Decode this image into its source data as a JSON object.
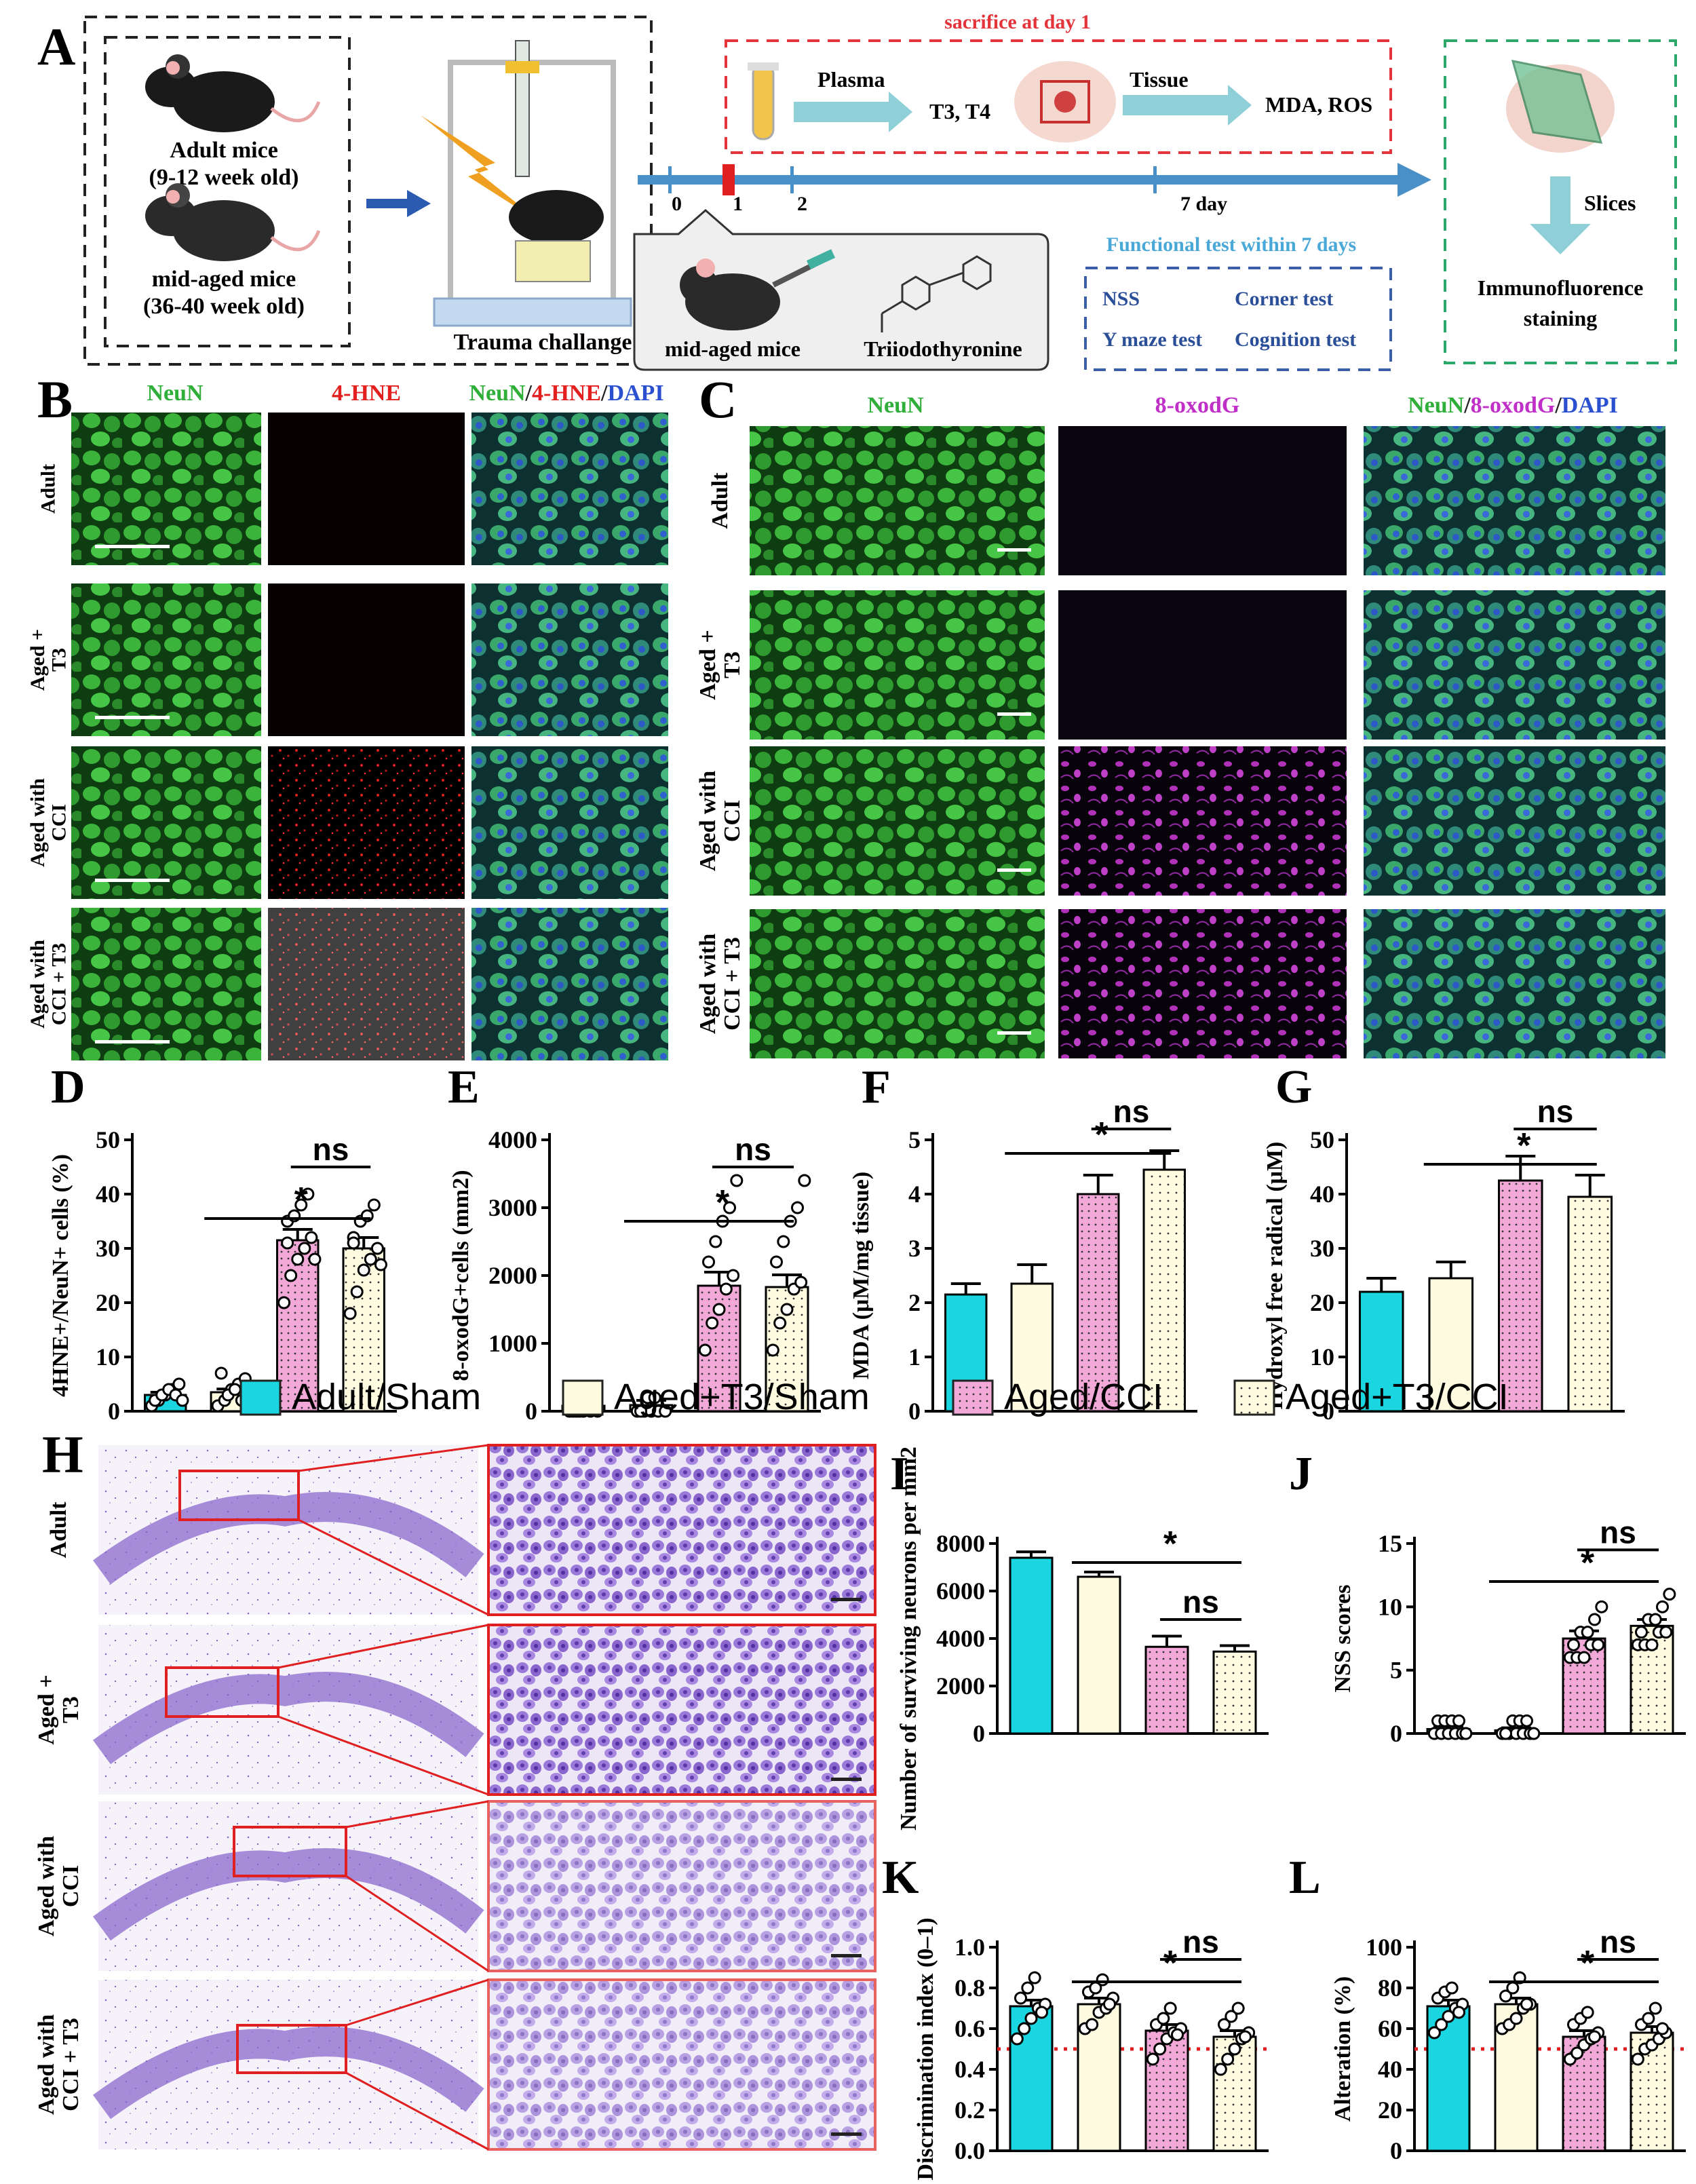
{
  "panel_labels": {
    "A": "A",
    "B": "B",
    "C": "C",
    "D": "D",
    "E": "E",
    "F": "F",
    "G": "G",
    "H": "H",
    "I": "I",
    "J": "J",
    "K": "K",
    "L": "L"
  },
  "schematic": {
    "adult_mice": "Adult mice",
    "adult_age": "(9-12 week old)",
    "midaged_mice": "mid-aged mice",
    "midaged_age": "(36-40 week old)",
    "trauma": "Trauma challange",
    "sacrifice": "sacrifice at day 1",
    "plasma": "Plasma",
    "t3t4": "T3, T4",
    "tissue": "Tissue",
    "mda_ros": "MDA, ROS",
    "tick_0": "0",
    "tick_1": "1",
    "tick_2": "2",
    "tick_7": "7 day",
    "inject_mice": "mid-aged mice",
    "drug": "Triiodothyronine",
    "functional_title": "Functional test within 7 days",
    "test_nss": "NSS",
    "test_corner": "Corner test",
    "test_ymaze": "Y maze test",
    "test_cognition": "Cognition test",
    "slices": "Slices",
    "immuno_1": "Immunofluorence",
    "immuno_2": "staining",
    "colors": {
      "red_box": "#e3343b",
      "green_box": "#2ea86a",
      "blue_arrow": "#4a90c8",
      "teal_arrow": "#8ecfd8",
      "blue_box": "#3a5fa8"
    }
  },
  "micrograph_B": {
    "col_neun": "NeuN",
    "col_hne": "4-HNE",
    "merge_neun": "NeuN",
    "merge_slash1": "/",
    "merge_hne": "4-HNE",
    "merge_slash2": "/",
    "merge_dapi": "DAPI",
    "rows": [
      "Adult",
      "Aged + T3",
      "Aged with CCI",
      "Aged with CCI + T3"
    ]
  },
  "micrograph_C": {
    "col_neun": "NeuN",
    "col_oxo": "8-oxodG",
    "merge_neun": "NeuN",
    "merge_slash1": "/",
    "merge_oxo": "8-oxodG",
    "merge_slash2": "/",
    "merge_dapi": "DAPI",
    "rows": [
      "Adult",
      "Aged + T3",
      "Aged with CCI",
      "Aged with CCI + T3"
    ]
  },
  "micrograph_H": {
    "rows": [
      "Adult",
      "Aged + T3",
      "Aged with CCI",
      "Aged with CCI + T3"
    ]
  },
  "legend": {
    "entries": [
      "Adult/Sham",
      "Aged+T3/Sham",
      "Aged/CCI",
      "Aged+T3/CCI"
    ],
    "colors": [
      "#19d6e0",
      "#fffbe0",
      "#f2a9d8",
      "#fffbe0"
    ]
  },
  "chart_data": [
    {
      "panel": "D",
      "type": "bar",
      "ylabel": "4HNE+/NeuN+ cells (%)",
      "ylim": [
        0,
        50
      ],
      "yticks": [
        0,
        10,
        20,
        30,
        40,
        50
      ],
      "values": [
        3,
        3.5,
        31.5,
        30
      ],
      "errors": [
        0.5,
        0.6,
        2,
        2
      ],
      "points": [
        [
          1,
          2,
          3,
          4,
          5,
          2,
          3,
          4,
          3,
          2
        ],
        [
          1,
          2,
          4,
          5,
          6,
          7,
          3,
          4,
          2,
          3
        ],
        [
          20,
          25,
          28,
          30,
          32,
          35,
          36,
          38,
          40,
          28,
          31
        ],
        [
          18,
          22,
          26,
          28,
          30,
          32,
          35,
          36,
          38,
          27,
          31
        ]
      ],
      "sig": [
        {
          "from": 1,
          "to": 3,
          "label": "*",
          "y": 35.5
        },
        {
          "from": 2,
          "to": 3,
          "label": "ns",
          "y": 45
        }
      ]
    },
    {
      "panel": "E",
      "type": "bar",
      "ylabel": "8-oxodG+cells (mm2)",
      "ylim": [
        0,
        4000
      ],
      "yticks": [
        0,
        1000,
        2000,
        3000,
        4000
      ],
      "values": [
        80,
        90,
        1850,
        1830
      ],
      "errors": [
        60,
        70,
        200,
        180
      ],
      "points": [
        [
          0,
          0,
          0,
          0,
          0,
          0,
          0,
          200,
          200
        ],
        [
          0,
          0,
          0,
          0,
          0,
          0,
          200,
          200
        ],
        [
          900,
          1300,
          1500,
          1800,
          2000,
          2200,
          2500,
          2800,
          3000,
          3400
        ],
        [
          900,
          1300,
          1500,
          1800,
          1900,
          2200,
          2500,
          2800,
          3000,
          3400
        ]
      ],
      "sig": [
        {
          "from": 1,
          "to": 3,
          "label": "*",
          "y": 2800
        },
        {
          "from": 2,
          "to": 3,
          "label": "ns",
          "y": 3600
        }
      ]
    },
    {
      "panel": "F",
      "type": "bar",
      "ylabel": "MDA (μM/mg tissue)",
      "ylim": [
        0,
        5
      ],
      "yticks": [
        0,
        1,
        2,
        3,
        4,
        5
      ],
      "values": [
        2.15,
        2.35,
        4.0,
        4.45
      ],
      "errors": [
        0.2,
        0.35,
        0.35,
        0.35
      ],
      "points": [
        [],
        [],
        [],
        []
      ],
      "sig": [
        {
          "from": 1,
          "to": 3,
          "label": "*",
          "y": 4.75
        },
        {
          "from": 2,
          "to": 3,
          "label": "ns",
          "y": 5.2
        }
      ]
    },
    {
      "panel": "G",
      "type": "bar",
      "ylabel": "Hydroxyl free radical (μM)",
      "ylim": [
        0,
        50
      ],
      "yticks": [
        0,
        10,
        20,
        30,
        40,
        50
      ],
      "values": [
        22,
        24.5,
        42.5,
        39.5
      ],
      "errors": [
        2.5,
        3,
        4.5,
        4
      ],
      "points": [
        [],
        [],
        [],
        []
      ],
      "sig": [
        {
          "from": 1,
          "to": 3,
          "label": "*",
          "y": 45.5
        },
        {
          "from": 2,
          "to": 3,
          "label": "ns",
          "y": 52
        }
      ]
    },
    {
      "panel": "I",
      "type": "bar",
      "ylabel": "Number of surviving neurons per mm2",
      "ylim": [
        0,
        8000
      ],
      "yticks": [
        0,
        2000,
        4000,
        6000,
        8000
      ],
      "values": [
        7400,
        6600,
        3650,
        3450
      ],
      "errors": [
        250,
        200,
        450,
        250
      ],
      "points": [
        [],
        [],
        [],
        []
      ],
      "sig": [
        {
          "from": 1,
          "to": 3,
          "label": "*",
          "y": 7200
        },
        {
          "from": 2,
          "to": 3,
          "label": "ns",
          "y": 4800
        }
      ]
    },
    {
      "panel": "J",
      "type": "bar",
      "ylabel": "NSS scores",
      "ylim": [
        0,
        15
      ],
      "yticks": [
        0,
        5,
        10,
        15
      ],
      "values": [
        0.35,
        0.25,
        7.5,
        8.5
      ],
      "errors": [
        0.2,
        0.2,
        0.6,
        0.5
      ],
      "points": [
        [
          0,
          0,
          0,
          0,
          0,
          1,
          1,
          1,
          1,
          0
        ],
        [
          0,
          0,
          0,
          0,
          0,
          0,
          1,
          1,
          1,
          0
        ],
        [
          6,
          6,
          6,
          7,
          7,
          7,
          8,
          8,
          9,
          10
        ],
        [
          7,
          7,
          7,
          8,
          8,
          8,
          9,
          9,
          10,
          11
        ]
      ],
      "sig": [
        {
          "from": 1,
          "to": 3,
          "label": "*",
          "y": 12
        },
        {
          "from": 2,
          "to": 3,
          "label": "ns",
          "y": 14.5
        }
      ]
    },
    {
      "panel": "K",
      "type": "bar",
      "ylabel": "Discrimination index (0–1)",
      "ylim": [
        0,
        1
      ],
      "yticks": [
        0,
        0.2,
        0.4,
        0.6,
        0.8,
        1.0
      ],
      "ref_line": 0.5,
      "values": [
        0.71,
        0.72,
        0.59,
        0.56
      ],
      "errors": [
        0.03,
        0.03,
        0.03,
        0.03
      ],
      "points": [
        [
          0.55,
          0.6,
          0.65,
          0.7,
          0.72,
          0.75,
          0.8,
          0.85,
          0.68
        ],
        [
          0.6,
          0.62,
          0.68,
          0.7,
          0.75,
          0.78,
          0.8,
          0.84,
          0.72
        ],
        [
          0.45,
          0.5,
          0.55,
          0.58,
          0.6,
          0.62,
          0.65,
          0.7,
          0.57
        ],
        [
          0.4,
          0.45,
          0.5,
          0.55,
          0.58,
          0.62,
          0.66,
          0.7,
          0.56
        ]
      ],
      "sig": [
        {
          "from": 1,
          "to": 3,
          "label": "*",
          "y": 0.83
        },
        {
          "from": 2,
          "to": 3,
          "label": "ns",
          "y": 0.94
        }
      ]
    },
    {
      "panel": "L",
      "type": "bar",
      "ylabel": "Alteration (%)",
      "ylim": [
        0,
        100
      ],
      "yticks": [
        0,
        20,
        40,
        60,
        80,
        100
      ],
      "ref_line": 50,
      "values": [
        71,
        72,
        56,
        58
      ],
      "errors": [
        3,
        3,
        3,
        3
      ],
      "points": [
        [
          58,
          62,
          66,
          70,
          72,
          75,
          78,
          80,
          68
        ],
        [
          60,
          62,
          65,
          70,
          72,
          76,
          80,
          85,
          72
        ],
        [
          45,
          48,
          52,
          55,
          58,
          62,
          65,
          68,
          56
        ],
        [
          45,
          50,
          52,
          55,
          58,
          62,
          65,
          70,
          60
        ]
      ],
      "sig": [
        {
          "from": 1,
          "to": 3,
          "label": "*",
          "y": 83
        },
        {
          "from": 2,
          "to": 3,
          "label": "ns",
          "y": 94
        }
      ]
    }
  ]
}
